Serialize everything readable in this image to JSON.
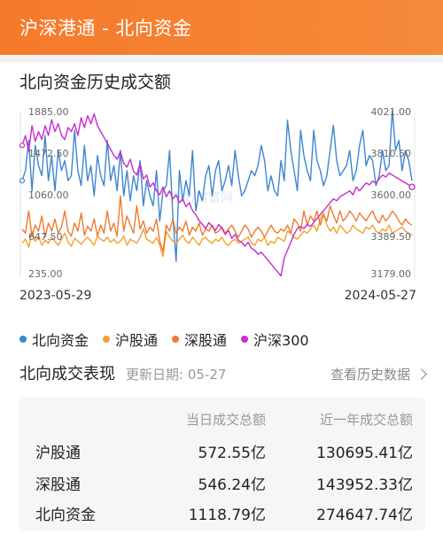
{
  "header": {
    "title": "沪深港通 - 北向资金"
  },
  "history": {
    "title": "北向资金历史成交额",
    "left_axis_ticks": [
      "1885.00",
      "1472.50",
      "1060.00",
      "647.50",
      "235.00"
    ],
    "right_axis_ticks": [
      "4021.00",
      "3810.50",
      "3600.00",
      "3389.50",
      "3179.00"
    ],
    "start_date": "2023-05-29",
    "end_date": "2024-05-27",
    "watermark": "东方财富网"
  },
  "chart_data": {
    "type": "line",
    "xlabel": "",
    "ylabel": "",
    "x_start": "2023-05-29",
    "x_end": "2024-05-27",
    "left_axis": {
      "ylim": [
        235,
        1885
      ],
      "ticks": [
        1885,
        1472.5,
        1060,
        647.5,
        235
      ]
    },
    "right_axis": {
      "ylim": [
        3179,
        4021
      ],
      "ticks": [
        4021,
        3810.5,
        3600,
        3389.5,
        3179
      ]
    },
    "series": [
      {
        "name": "北向资金",
        "color": "#3f86d0",
        "axis": "left",
        "values": [
          1200,
          1300,
          1600,
          1100,
          1550,
          1350,
          1250,
          1650,
          1200,
          1450,
          1100,
          1500,
          1300,
          1400,
          1200,
          1250,
          1700,
          1300,
          1150,
          1550,
          1200,
          1350,
          1050,
          1450,
          1250,
          1150,
          1600,
          1200,
          1350,
          1100,
          1500,
          1050,
          1300,
          1000,
          1250,
          1100,
          1400,
          950,
          1200,
          1050,
          950,
          1300,
          800,
          1100,
          1150,
          1500,
          850,
          400,
          1300,
          1000,
          1200,
          1050,
          1500,
          900,
          1100,
          1000,
          1250,
          1350,
          1050,
          1300,
          1400,
          1100,
          1200,
          1350,
          1150,
          1500,
          1250,
          1050,
          1100,
          1200,
          1300,
          1250,
          1350,
          1550,
          1400,
          1100,
          1250,
          1100,
          1050,
          1400,
          1200,
          1800,
          1500,
          1300,
          1100,
          1700,
          1450,
          1300,
          1200,
          1700,
          1400,
          1300,
          1150,
          1250,
          1500,
          1750,
          1400,
          1250,
          1300,
          1350,
          1500,
          1200,
          1300,
          1550,
          1700,
          1350,
          1450,
          1400,
          1150,
          1250,
          1500,
          1300,
          1350,
          1900,
          1500,
          1600,
          1300,
          1500,
          1400,
          1200
        ]
      },
      {
        "name": "沪股通",
        "color": "#f4a030",
        "axis": "left",
        "values": [
          580,
          620,
          540,
          700,
          600,
          650,
          560,
          610,
          580,
          640,
          600,
          560,
          620,
          680,
          590,
          550,
          630,
          600,
          570,
          610,
          640,
          600,
          560,
          650,
          620,
          600,
          640,
          590,
          620,
          580,
          600,
          650,
          560,
          620,
          600,
          580,
          640,
          720,
          620,
          600,
          580,
          640,
          560,
          450,
          700,
          640,
          600,
          580,
          620,
          660,
          600,
          580,
          640,
          600,
          560,
          620,
          640,
          600,
          580,
          620,
          600,
          640,
          580,
          560,
          600,
          620,
          580,
          600,
          620,
          640,
          580,
          560,
          620,
          600,
          640,
          560,
          600,
          580,
          640,
          620,
          600,
          700,
          680,
          640,
          620,
          660,
          700,
          680,
          720,
          760,
          700,
          820,
          880,
          760,
          700,
          740,
          680,
          760,
          720,
          680,
          700,
          760,
          720,
          700,
          680,
          740,
          720,
          760,
          700,
          680,
          720,
          700,
          760,
          680,
          700,
          720,
          740,
          700,
          680,
          660
        ]
      },
      {
        "name": "深股通",
        "color": "#f07a30",
        "axis": "left",
        "values": [
          720,
          680,
          900,
          650,
          760,
          700,
          850,
          640,
          780,
          700,
          820,
          680,
          740,
          900,
          700,
          650,
          780,
          700,
          880,
          660,
          750,
          700,
          820,
          650,
          760,
          680,
          900,
          700,
          780,
          650,
          1050,
          700,
          850,
          760,
          680,
          950,
          720,
          800,
          680,
          740,
          700,
          820,
          600,
          500,
          760,
          700,
          820,
          680,
          740,
          700,
          800,
          660,
          740,
          700,
          780,
          660,
          720,
          700,
          760,
          680,
          700,
          740,
          680,
          720,
          760,
          700,
          640,
          700,
          760,
          720,
          640,
          700,
          740,
          700,
          640,
          700,
          760,
          700,
          680,
          720,
          700,
          760,
          680,
          820,
          780,
          700,
          900,
          760,
          850,
          800,
          900,
          760,
          860,
          800,
          950,
          860,
          780,
          900,
          800,
          840,
          900,
          860,
          800,
          880,
          840,
          800,
          860,
          900,
          820,
          780,
          860,
          800,
          840,
          900,
          860,
          800,
          760,
          820,
          780,
          760
        ]
      },
      {
        "name": "沪深300",
        "color": "#c72ccc",
        "axis": "right",
        "values": [
          3850,
          3900,
          3820,
          3950,
          3870,
          3920,
          3880,
          3950,
          3900,
          3980,
          3920,
          3960,
          3900,
          3880,
          3940,
          3920,
          3960,
          3900,
          3990,
          3940,
          4000,
          3960,
          4010,
          3950,
          3920,
          3890,
          3860,
          3830,
          3800,
          3780,
          3820,
          3760,
          3740,
          3780,
          3720,
          3700,
          3760,
          3680,
          3700,
          3640,
          3660,
          3620,
          3600,
          3640,
          3590,
          3620,
          3580,
          3600,
          3560,
          3580,
          3540,
          3560,
          3520,
          3500,
          3470,
          3450,
          3430,
          3460,
          3440,
          3420,
          3450,
          3430,
          3400,
          3420,
          3380,
          3400,
          3370,
          3360,
          3340,
          3360,
          3330,
          3320,
          3300,
          3310,
          3290,
          3270,
          3250,
          3230,
          3210,
          3190,
          3280,
          3320,
          3360,
          3400,
          3430,
          3440,
          3430,
          3450,
          3440,
          3460,
          3480,
          3500,
          3520,
          3540,
          3560,
          3580,
          3570,
          3590,
          3600,
          3610,
          3620,
          3600,
          3640,
          3620,
          3640,
          3660,
          3650,
          3670,
          3660,
          3680,
          3700,
          3690,
          3710,
          3700,
          3690,
          3680,
          3670,
          3660,
          3650,
          3640
        ]
      }
    ]
  },
  "legend": [
    {
      "label": "北向资金",
      "color": "#3f86d0"
    },
    {
      "label": "沪股通",
      "color": "#f4a030"
    },
    {
      "label": "深股通",
      "color": "#f07a30"
    },
    {
      "label": "沪深300",
      "color": "#c72ccc"
    }
  ],
  "performance": {
    "title": "北向成交表现",
    "update_date": "更新日期: 05-27",
    "history_link": "查看历史数据",
    "col_today": "当日成交总额",
    "col_year": "近一年成交总额",
    "rows": [
      {
        "name": "沪股通",
        "today": "572.55亿",
        "year": "130695.41亿"
      },
      {
        "name": "深股通",
        "today": "546.24亿",
        "year": "143952.33亿"
      },
      {
        "name": "北向资金",
        "today": "1118.79亿",
        "year": "274647.74亿"
      }
    ]
  }
}
